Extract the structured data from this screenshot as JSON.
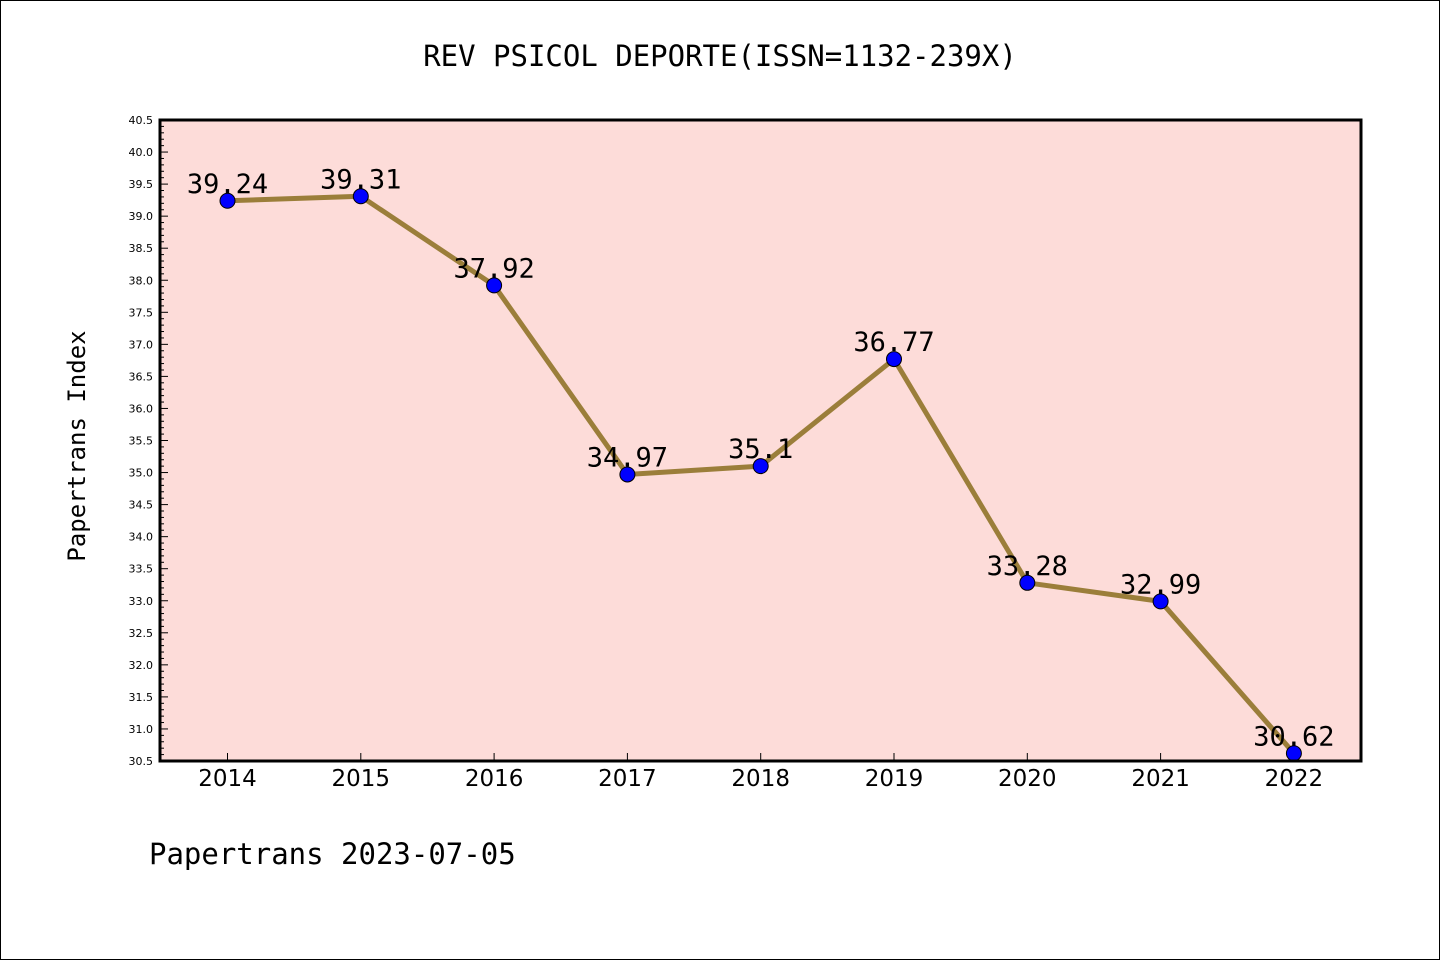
{
  "chart_data": {
    "type": "line",
    "title": "REV PSICOL DEPORTE(ISSN=1132-239X)",
    "xlabel": "",
    "ylabel": "Papertrans Index",
    "categories": [
      "2014",
      "2015",
      "2016",
      "2017",
      "2018",
      "2019",
      "2020",
      "2021",
      "2022"
    ],
    "series": [
      {
        "values": [
          39.24,
          39.31,
          37.92,
          34.97,
          35.1,
          36.77,
          33.28,
          32.99,
          30.62
        ]
      }
    ],
    "data_labels": [
      "39.24",
      "39.31",
      "37.92",
      "34.97",
      "35.1",
      "36.77",
      "33.28",
      "32.99",
      "30.62"
    ],
    "ylim": [
      30.5,
      40.5
    ],
    "yticks": [
      "30.5",
      "31.0",
      "31.5",
      "32.0",
      "32.5",
      "33.0",
      "33.5",
      "34.0",
      "34.5",
      "35.0",
      "35.5",
      "36.0",
      "36.5",
      "37.0",
      "37.5",
      "38.0",
      "38.5",
      "39.0",
      "39.5",
      "40.0",
      "40.5"
    ],
    "grid": false,
    "colors": {
      "background": "#fddcd9",
      "line": "#9b7e3a",
      "marker": "#0000ff"
    }
  },
  "footer": {
    "text": "Papertrans 2023-07-05"
  }
}
